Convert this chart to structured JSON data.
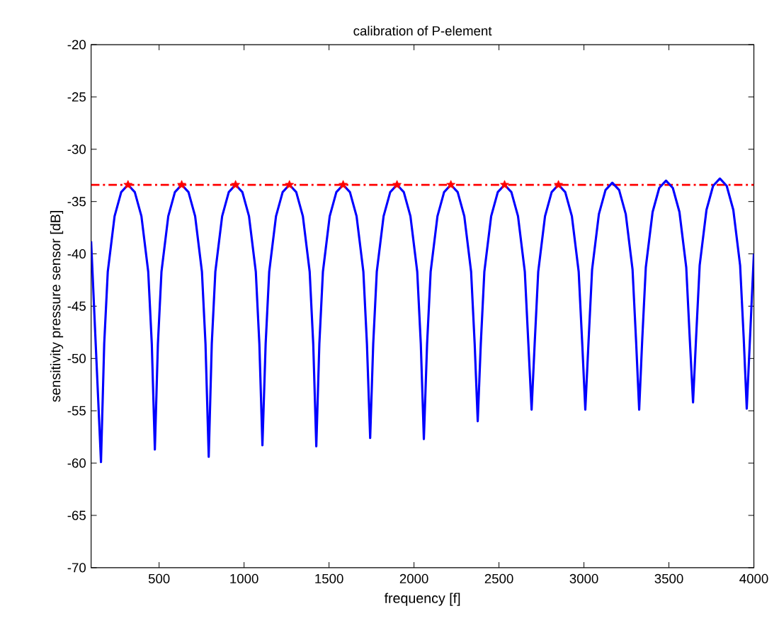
{
  "chart_data": {
    "type": "line",
    "title": "calibration of P-element",
    "xlabel": "frequency [f]",
    "ylabel": "sensitivity pressure sensor [dB]",
    "xlim": [
      100,
      4000
    ],
    "ylim": [
      -70,
      -20
    ],
    "xticks": [
      500,
      1000,
      1500,
      2000,
      2500,
      3000,
      3500,
      4000
    ],
    "yticks": [
      -70,
      -65,
      -60,
      -55,
      -50,
      -45,
      -40,
      -35,
      -30,
      -25,
      -20
    ],
    "series": [
      {
        "color": "#0000ff",
        "line_style": "solid",
        "marker": "none",
        "x": [
          100,
          158,
          177,
          198,
          238,
          277,
          317,
          357,
          396,
          436,
          457,
          475,
          493,
          514,
          554,
          593,
          633,
          673,
          712,
          752,
          773,
          792,
          810,
          831,
          871,
          910,
          950,
          990,
          1029,
          1069,
          1090,
          1108,
          1127,
          1148,
          1188,
          1227,
          1267,
          1307,
          1346,
          1386,
          1407,
          1425,
          1443,
          1464,
          1504,
          1543,
          1583,
          1623,
          1662,
          1702,
          1723,
          1742,
          1760,
          1781,
          1821,
          1860,
          1900,
          1940,
          1979,
          2019,
          2040,
          2058,
          2077,
          2098,
          2138,
          2177,
          2217,
          2257,
          2296,
          2336,
          2357,
          2375,
          2393,
          2414,
          2454,
          2493,
          2533,
          2573,
          2612,
          2652,
          2673,
          2692,
          2710,
          2731,
          2771,
          2810,
          2850,
          2890,
          2929,
          2969,
          2990,
          3008,
          3027,
          3048,
          3088,
          3127,
          3167,
          3207,
          3246,
          3286,
          3307,
          3325,
          3343,
          3364,
          3404,
          3443,
          3483,
          3523,
          3562,
          3602,
          3623,
          3642,
          3660,
          3681,
          3721,
          3760,
          3800,
          3840,
          3879,
          3919,
          3940,
          3958,
          4000
        ],
        "values": [
          -38.8,
          -59.9,
          -48.6,
          -41.7,
          -36.4,
          -34.1,
          -33.4,
          -34.1,
          -36.4,
          -41.7,
          -48.6,
          -58.7,
          -48.6,
          -41.7,
          -36.4,
          -34.1,
          -33.4,
          -34.1,
          -36.4,
          -41.7,
          -48.6,
          -59.4,
          -48.6,
          -41.7,
          -36.4,
          -34.1,
          -33.4,
          -34.1,
          -36.4,
          -41.7,
          -48.6,
          -58.3,
          -48.6,
          -41.7,
          -36.4,
          -34.1,
          -33.4,
          -34.1,
          -36.4,
          -41.7,
          -48.6,
          -58.4,
          -48.6,
          -41.7,
          -36.4,
          -34.1,
          -33.4,
          -34.1,
          -36.4,
          -41.7,
          -48.6,
          -57.6,
          -48.6,
          -41.7,
          -36.4,
          -34.1,
          -33.4,
          -34.1,
          -36.4,
          -41.7,
          -48.6,
          -57.7,
          -48.6,
          -41.7,
          -36.4,
          -34.1,
          -33.4,
          -34.1,
          -36.4,
          -41.7,
          -48.6,
          -56.0,
          -48.6,
          -41.7,
          -36.4,
          -34.1,
          -33.4,
          -34.1,
          -36.4,
          -41.7,
          -48.6,
          -54.9,
          -48.6,
          -41.7,
          -36.4,
          -34.1,
          -33.4,
          -34.1,
          -36.4,
          -41.7,
          -48.6,
          -54.9,
          -48.4,
          -41.5,
          -36.2,
          -33.9,
          -33.2,
          -33.9,
          -36.2,
          -41.5,
          -48.4,
          -54.9,
          -48.2,
          -41.3,
          -36.0,
          -33.7,
          -33.0,
          -33.7,
          -36.0,
          -41.3,
          -48.2,
          -54.2,
          -48.0,
          -41.1,
          -35.8,
          -33.5,
          -32.8,
          -33.5,
          -35.8,
          -41.1,
          -48.0,
          -54.8,
          -40.0
        ]
      },
      {
        "type": "scatter",
        "color": "#ff0000",
        "marker": "star",
        "x": [
          317,
          633,
          950,
          1267,
          1583,
          1900,
          2217,
          2533,
          2850
        ],
        "values": [
          -33.4,
          -33.4,
          -33.4,
          -33.4,
          -33.4,
          -33.4,
          -33.4,
          -33.4,
          -33.4
        ]
      }
    ],
    "ref_lines": [
      {
        "axis": "y",
        "value": -33.4,
        "color": "#ff0000",
        "line_style": "dashdot"
      }
    ]
  }
}
